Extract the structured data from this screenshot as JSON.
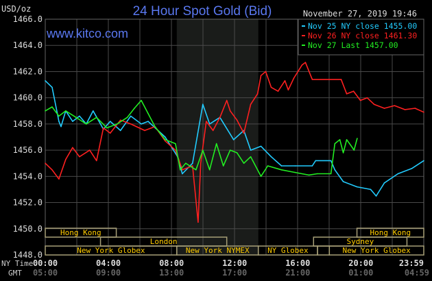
{
  "chart_data": {
    "type": "line",
    "title": "24 Hour Spot Gold (Bid)",
    "ylabel": "USD/oz",
    "watermark": "www.kitco.com",
    "timestamp": "November 27, 2019 19:46",
    "ylim": [
      1448,
      1466
    ],
    "yticks": [
      "1466.0",
      "1464.0",
      "1462.0",
      "1460.0",
      "1458.0",
      "1456.0",
      "1454.0",
      "1452.0",
      "1450.0",
      "1448.0"
    ],
    "xlim": [
      "00:00",
      "23:59"
    ],
    "x_row_labels": {
      "ny": "NY Time",
      "gmt": "GMT"
    },
    "xticks_ny": [
      "00:00",
      "04:00",
      "08:00",
      "12:00",
      "16:00",
      "20:00",
      "23:59"
    ],
    "xticks_gmt": [
      "05:00",
      "09:00",
      "13:00",
      "17:00",
      "21:00",
      "01:00",
      "04:59"
    ],
    "grid": true,
    "legend_position": "top-right",
    "shaded_period": [
      "08:20",
      "13:30"
    ],
    "colors": {
      "background": "#000000",
      "grid": "#4a4a4a",
      "title": "#5a78f0",
      "session_text": "#ffcc00",
      "session_border": "#a8a078",
      "shade": "#1a1c1a"
    },
    "series": [
      {
        "name": "Nov 25 NY close 1455.00",
        "color": "#22ccff",
        "points": [
          [
            "00:00",
            1461.3
          ],
          [
            "00:26",
            1460.8
          ],
          [
            "00:52",
            1458.2
          ],
          [
            "01:00",
            1457.8
          ],
          [
            "01:18",
            1459.0
          ],
          [
            "01:44",
            1458.2
          ],
          [
            "02:10",
            1458.6
          ],
          [
            "02:36",
            1458.0
          ],
          [
            "03:02",
            1459.0
          ],
          [
            "03:41",
            1457.6
          ],
          [
            "04:07",
            1458.2
          ],
          [
            "04:46",
            1457.5
          ],
          [
            "05:25",
            1458.6
          ],
          [
            "06:05",
            1458.0
          ],
          [
            "06:31",
            1458.2
          ],
          [
            "07:36",
            1457.0
          ],
          [
            "08:23",
            1455.5
          ],
          [
            "08:41",
            1454.2
          ],
          [
            "09:20",
            1455.0
          ],
          [
            "09:59",
            1459.5
          ],
          [
            "10:25",
            1458.0
          ],
          [
            "11:04",
            1458.5
          ],
          [
            "11:56",
            1456.8
          ],
          [
            "12:35",
            1457.5
          ],
          [
            "13:01",
            1456.0
          ],
          [
            "13:40",
            1456.3
          ],
          [
            "14:19",
            1455.5
          ],
          [
            "14:58",
            1454.8
          ],
          [
            "15:50",
            1454.8
          ],
          [
            "16:55",
            1454.8
          ],
          [
            "17:08",
            1455.2
          ],
          [
            "18:06",
            1455.2
          ],
          [
            "18:21",
            1454.5
          ],
          [
            "18:53",
            1453.6
          ],
          [
            "19:45",
            1453.2
          ],
          [
            "20:37",
            1453.0
          ],
          [
            "20:58",
            1452.5
          ],
          [
            "21:29",
            1453.5
          ],
          [
            "22:21",
            1454.2
          ],
          [
            "23:13",
            1454.6
          ],
          [
            "23:59",
            1455.2
          ]
        ]
      },
      {
        "name": "Nov 26 NY close 1461.30",
        "color": "#ff2020",
        "points": [
          [
            "00:00",
            1455.0
          ],
          [
            "00:26",
            1454.5
          ],
          [
            "00:52",
            1453.8
          ],
          [
            "01:18",
            1455.3
          ],
          [
            "01:44",
            1456.2
          ],
          [
            "02:10",
            1455.5
          ],
          [
            "02:49",
            1456.0
          ],
          [
            "03:15",
            1455.2
          ],
          [
            "03:41",
            1457.7
          ],
          [
            "04:07",
            1457.3
          ],
          [
            "04:46",
            1458.3
          ],
          [
            "05:25",
            1458.0
          ],
          [
            "06:18",
            1457.5
          ],
          [
            "06:57",
            1457.8
          ],
          [
            "07:36",
            1456.7
          ],
          [
            "08:15",
            1456.0
          ],
          [
            "08:41",
            1454.5
          ],
          [
            "09:20",
            1454.8
          ],
          [
            "09:41",
            1450.5
          ],
          [
            "09:51",
            1455.0
          ],
          [
            "10:12",
            1458.2
          ],
          [
            "10:38",
            1457.5
          ],
          [
            "11:04",
            1458.5
          ],
          [
            "11:30",
            1459.8
          ],
          [
            "11:43",
            1459.0
          ],
          [
            "12:09",
            1458.3
          ],
          [
            "12:35",
            1457.3
          ],
          [
            "13:01",
            1459.5
          ],
          [
            "13:27",
            1460.3
          ],
          [
            "13:40",
            1461.7
          ],
          [
            "13:58",
            1462.0
          ],
          [
            "14:19",
            1460.8
          ],
          [
            "14:45",
            1460.5
          ],
          [
            "15:11",
            1461.3
          ],
          [
            "15:24",
            1460.6
          ],
          [
            "15:45",
            1461.5
          ],
          [
            "16:16",
            1462.5
          ],
          [
            "16:29",
            1462.7
          ],
          [
            "16:55",
            1461.4
          ],
          [
            "18:45",
            1461.4
          ],
          [
            "19:06",
            1460.3
          ],
          [
            "19:32",
            1460.5
          ],
          [
            "19:58",
            1459.8
          ],
          [
            "20:24",
            1460.0
          ],
          [
            "20:50",
            1459.5
          ],
          [
            "21:29",
            1459.2
          ],
          [
            "22:08",
            1459.4
          ],
          [
            "22:47",
            1459.1
          ],
          [
            "23:26",
            1459.2
          ],
          [
            "23:59",
            1458.9
          ]
        ]
      },
      {
        "name": "Nov 27 Last 1457.00",
        "color": "#22ee22",
        "points": [
          [
            "00:00",
            1459.0
          ],
          [
            "00:26",
            1459.3
          ],
          [
            "00:52",
            1458.6
          ],
          [
            "01:18",
            1459.0
          ],
          [
            "01:57",
            1458.5
          ],
          [
            "02:36",
            1458.0
          ],
          [
            "03:15",
            1458.5
          ],
          [
            "03:54",
            1457.7
          ],
          [
            "04:33",
            1458.0
          ],
          [
            "05:12",
            1458.5
          ],
          [
            "05:39",
            1459.2
          ],
          [
            "06:05",
            1459.8
          ],
          [
            "06:31",
            1458.8
          ],
          [
            "06:57",
            1457.8
          ],
          [
            "07:36",
            1456.8
          ],
          [
            "08:15",
            1456.5
          ],
          [
            "08:33",
            1454.5
          ],
          [
            "08:54",
            1455.0
          ],
          [
            "09:33",
            1454.5
          ],
          [
            "09:59",
            1456.0
          ],
          [
            "10:25",
            1454.5
          ],
          [
            "10:51",
            1456.5
          ],
          [
            "11:17",
            1454.8
          ],
          [
            "11:43",
            1456.0
          ],
          [
            "12:09",
            1455.8
          ],
          [
            "12:35",
            1455.0
          ],
          [
            "13:01",
            1455.5
          ],
          [
            "13:40",
            1454.0
          ],
          [
            "14:06",
            1454.8
          ],
          [
            "14:58",
            1454.5
          ],
          [
            "15:50",
            1454.3
          ],
          [
            "16:42",
            1454.1
          ],
          [
            "17:14",
            1454.2
          ],
          [
            "18:06",
            1454.2
          ],
          [
            "18:21",
            1456.5
          ],
          [
            "18:40",
            1456.8
          ],
          [
            "18:53",
            1455.8
          ],
          [
            "19:06",
            1456.8
          ],
          [
            "19:24",
            1456.3
          ],
          [
            "19:34",
            1456.0
          ],
          [
            "19:46",
            1456.9
          ]
        ]
      }
    ],
    "sessions": [
      {
        "label": "Hong Kong",
        "row": 0,
        "start": "00:00",
        "end": "04:30"
      },
      {
        "label": "Hong Kong",
        "row": 0,
        "start": "19:45",
        "end": "23:59"
      },
      {
        "label": "London",
        "row": 1,
        "start": "03:30",
        "end": "11:30"
      },
      {
        "label": "Sydney",
        "row": 1,
        "start": "17:00",
        "end": "22:55"
      },
      {
        "label": "New York Globex",
        "row": 2,
        "start": "00:00",
        "end": "08:20"
      },
      {
        "label": "New York NYMEX",
        "row": 2,
        "start": "08:20",
        "end": "13:30"
      },
      {
        "label": "NY Globex",
        "row": 2,
        "start": "13:30",
        "end": "17:15"
      },
      {
        "label": "",
        "row": 2,
        "start": "17:15",
        "end": "18:00"
      },
      {
        "label": "New York Globex",
        "row": 2,
        "start": "18:00",
        "end": "23:59"
      }
    ]
  }
}
